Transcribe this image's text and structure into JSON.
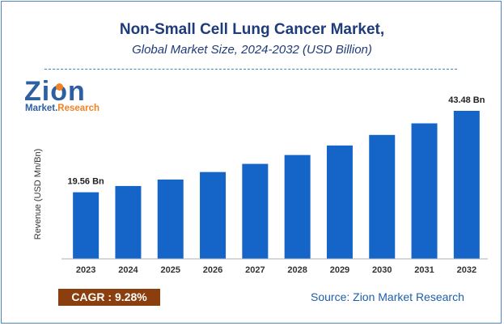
{
  "header": {
    "title": "Non-Small Cell Lung Cancer Market,",
    "subtitle": "Global Market Size, 2024-2032 (USD Billion)"
  },
  "logo": {
    "main": "Zion",
    "sub_left": "Market.",
    "sub_right": "Research"
  },
  "footer": {
    "cagr_label": "CAGR :",
    "cagr_value": "9.28%",
    "source": "Source: Zion Market Research"
  },
  "colors": {
    "bar": "#1565c8",
    "title": "#1f3b79",
    "cagr_bg": "#8b3f0e",
    "logo": "#2d5fa3",
    "logo_accent": "#f58220"
  },
  "chart_data": {
    "type": "bar",
    "categories": [
      "2023",
      "2024",
      "2025",
      "2026",
      "2027",
      "2028",
      "2029",
      "2030",
      "2031",
      "2032"
    ],
    "values": [
      19.56,
      21.4,
      23.3,
      25.5,
      27.9,
      30.5,
      33.3,
      36.4,
      39.8,
      43.48
    ],
    "data_labels": {
      "0": "19.56 Bn",
      "9": "43.48 Bn"
    },
    "title": "Non-Small Cell Lung Cancer Market,",
    "subtitle": "Global Market Size, 2024-2032 (USD Billion)",
    "xlabel": "",
    "ylabel": "Revenue (USD Mn/Bn)",
    "ylim": [
      0,
      50
    ],
    "grid": false,
    "legend": "none"
  }
}
